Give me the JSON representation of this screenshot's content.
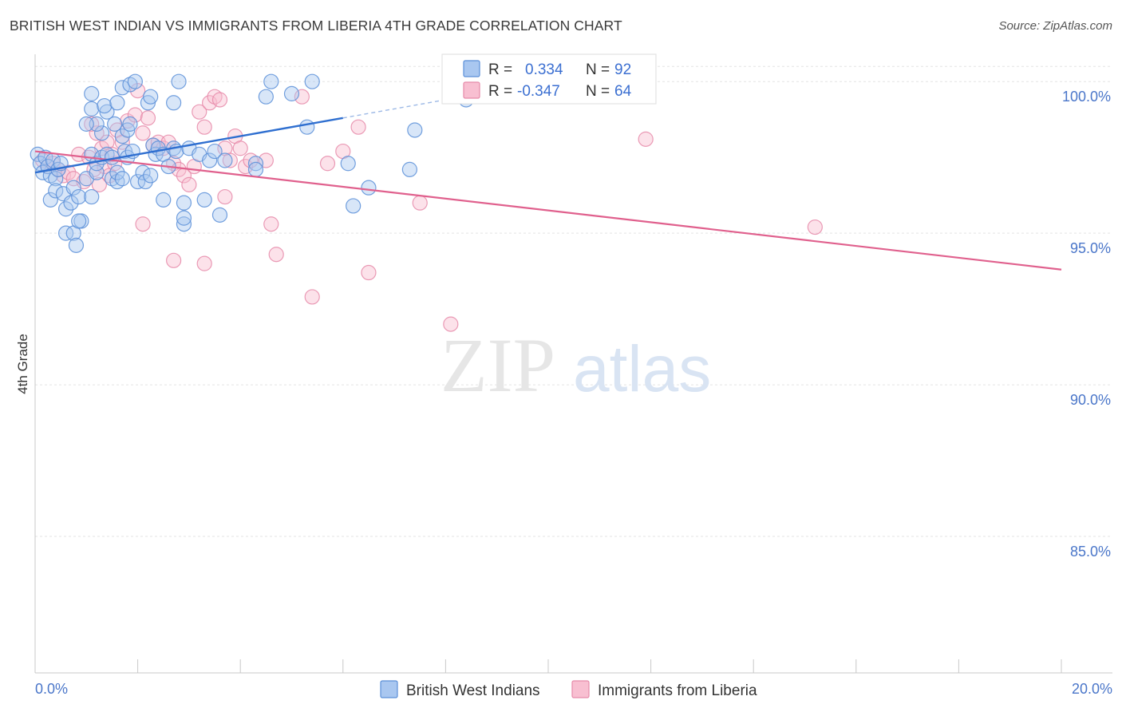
{
  "header": {
    "title": "BRITISH WEST INDIAN VS IMMIGRANTS FROM LIBERIA 4TH GRADE CORRELATION CHART",
    "source": "Source: ZipAtlas.com"
  },
  "watermark": {
    "zip": "ZIP",
    "atlas": "atlas"
  },
  "legend": {
    "r_label": "R =",
    "n_label": "N =",
    "series1": {
      "r": "0.334",
      "n": "92"
    },
    "series2": {
      "r": "-0.347",
      "n": "64"
    }
  },
  "chart_data": {
    "type": "scatter",
    "title": "BRITISH WEST INDIAN VS IMMIGRANTS FROM LIBERIA 4TH GRADE CORRELATION CHART",
    "xlabel": "",
    "ylabel": "4th Grade",
    "xlim": [
      0,
      20
    ],
    "ylim": [
      80.5,
      100.9
    ],
    "x_tick_labels": [
      "0.0%",
      "20.0%"
    ],
    "y_ticks": [
      85,
      90,
      95,
      100
    ],
    "y_tick_labels": [
      "85.0%",
      "90.0%",
      "95.0%",
      "100.0%"
    ],
    "colors": {
      "series1_fill": "#a9c7f0",
      "series1_stroke": "#5b8fd8",
      "series1_line": "#2f6fd0",
      "series2_fill": "#f8bfd1",
      "series2_stroke": "#e68aa9",
      "series2_line": "#e0608d"
    },
    "series": [
      {
        "name": "British West Indians",
        "trend": {
          "x": [
            0.0,
            6.0
          ],
          "y": [
            97.0,
            98.8
          ],
          "dashed_x": [
            6.0,
            9.0
          ],
          "dashed_y": [
            98.8,
            99.7
          ]
        },
        "points": [
          [
            0.05,
            97.6
          ],
          [
            0.1,
            97.3
          ],
          [
            0.15,
            97.0
          ],
          [
            0.2,
            97.5
          ],
          [
            0.25,
            97.2
          ],
          [
            0.3,
            96.9
          ],
          [
            0.35,
            97.4
          ],
          [
            0.4,
            96.8
          ],
          [
            0.45,
            97.1
          ],
          [
            0.5,
            97.3
          ],
          [
            0.3,
            96.1
          ],
          [
            0.4,
            96.4
          ],
          [
            0.55,
            96.3
          ],
          [
            0.6,
            95.8
          ],
          [
            0.7,
            96.0
          ],
          [
            0.75,
            96.5
          ],
          [
            0.85,
            96.2
          ],
          [
            0.9,
            95.4
          ],
          [
            0.6,
            95.0
          ],
          [
            0.75,
            95.0
          ],
          [
            0.8,
            94.6
          ],
          [
            0.85,
            95.4
          ],
          [
            1.0,
            96.8
          ],
          [
            1.1,
            96.2
          ],
          [
            1.2,
            97.0
          ],
          [
            1.1,
            97.6
          ],
          [
            1.2,
            97.3
          ],
          [
            1.3,
            97.5
          ],
          [
            1.4,
            97.6
          ],
          [
            1.5,
            96.8
          ],
          [
            1.6,
            96.7
          ],
          [
            1.6,
            97.0
          ],
          [
            1.7,
            96.8
          ],
          [
            1.5,
            97.5
          ],
          [
            1.75,
            97.7
          ],
          [
            1.8,
            97.5
          ],
          [
            1.9,
            97.7
          ],
          [
            1.7,
            98.2
          ],
          [
            1.8,
            98.4
          ],
          [
            1.55,
            98.6
          ],
          [
            1.3,
            98.3
          ],
          [
            1.2,
            98.6
          ],
          [
            1.0,
            98.6
          ],
          [
            1.4,
            99.0
          ],
          [
            1.1,
            99.1
          ],
          [
            1.35,
            99.2
          ],
          [
            1.1,
            99.6
          ],
          [
            1.6,
            99.3
          ],
          [
            1.7,
            99.8
          ],
          [
            1.85,
            98.6
          ],
          [
            1.85,
            99.9
          ],
          [
            1.95,
            100.0
          ],
          [
            2.0,
            96.7
          ],
          [
            2.1,
            97.0
          ],
          [
            2.2,
            99.3
          ],
          [
            2.25,
            99.5
          ],
          [
            2.3,
            97.9
          ],
          [
            2.35,
            97.6
          ],
          [
            2.15,
            96.7
          ],
          [
            2.5,
            96.1
          ],
          [
            2.4,
            97.8
          ],
          [
            2.5,
            97.6
          ],
          [
            2.25,
            96.9
          ],
          [
            2.6,
            97.2
          ],
          [
            2.7,
            97.8
          ],
          [
            2.75,
            97.7
          ],
          [
            2.8,
            100.0
          ],
          [
            2.7,
            99.3
          ],
          [
            2.9,
            95.3
          ],
          [
            2.9,
            96.0
          ],
          [
            2.9,
            95.5
          ],
          [
            3.0,
            97.8
          ],
          [
            3.2,
            97.6
          ],
          [
            3.4,
            97.4
          ],
          [
            3.5,
            97.7
          ],
          [
            3.6,
            95.6
          ],
          [
            3.7,
            97.4
          ],
          [
            3.3,
            96.1
          ],
          [
            4.3,
            97.3
          ],
          [
            4.3,
            97.1
          ],
          [
            4.5,
            99.5
          ],
          [
            4.6,
            100.0
          ],
          [
            5.0,
            99.6
          ],
          [
            5.3,
            98.5
          ],
          [
            5.4,
            100.0
          ],
          [
            6.1,
            97.3
          ],
          [
            6.2,
            95.9
          ],
          [
            6.5,
            96.5
          ],
          [
            7.3,
            97.1
          ],
          [
            7.4,
            98.4
          ],
          [
            8.4,
            99.4
          ],
          [
            8.6,
            99.8
          ]
        ]
      },
      {
        "name": "Immigrants from Liberia",
        "trend": {
          "x": [
            0.0,
            20.0
          ],
          "y": [
            97.7,
            93.8
          ]
        },
        "points": [
          [
            0.15,
            97.4
          ],
          [
            0.25,
            97.2
          ],
          [
            0.35,
            97.3
          ],
          [
            0.45,
            97.1
          ],
          [
            0.55,
            96.9
          ],
          [
            0.65,
            97.0
          ],
          [
            0.75,
            96.8
          ],
          [
            0.85,
            97.6
          ],
          [
            0.95,
            96.7
          ],
          [
            1.05,
            97.5
          ],
          [
            1.15,
            97.1
          ],
          [
            1.25,
            96.6
          ],
          [
            1.35,
            97.2
          ],
          [
            1.45,
            96.9
          ],
          [
            1.55,
            97.3
          ],
          [
            1.3,
            97.8
          ],
          [
            1.4,
            98.0
          ],
          [
            1.5,
            97.6
          ],
          [
            1.2,
            98.3
          ],
          [
            1.1,
            98.6
          ],
          [
            1.6,
            98.4
          ],
          [
            1.7,
            98.0
          ],
          [
            1.8,
            98.7
          ],
          [
            2.0,
            99.7
          ],
          [
            1.95,
            98.9
          ],
          [
            2.1,
            98.3
          ],
          [
            2.2,
            98.8
          ],
          [
            2.3,
            97.9
          ],
          [
            2.4,
            98.0
          ],
          [
            2.5,
            97.8
          ],
          [
            2.6,
            98.0
          ],
          [
            2.7,
            97.3
          ],
          [
            2.8,
            97.1
          ],
          [
            2.9,
            96.9
          ],
          [
            3.0,
            96.6
          ],
          [
            3.1,
            97.2
          ],
          [
            3.2,
            99.0
          ],
          [
            3.3,
            98.5
          ],
          [
            3.4,
            99.3
          ],
          [
            3.5,
            99.5
          ],
          [
            3.6,
            99.4
          ],
          [
            3.7,
            97.8
          ],
          [
            3.8,
            97.4
          ],
          [
            3.9,
            98.2
          ],
          [
            4.0,
            97.8
          ],
          [
            4.1,
            97.2
          ],
          [
            4.5,
            97.4
          ],
          [
            4.6,
            95.3
          ],
          [
            4.7,
            94.3
          ],
          [
            5.2,
            99.5
          ],
          [
            2.1,
            95.3
          ],
          [
            2.7,
            94.1
          ],
          [
            3.3,
            94.0
          ],
          [
            3.7,
            96.2
          ],
          [
            4.2,
            97.4
          ],
          [
            5.4,
            92.9
          ],
          [
            5.7,
            97.3
          ],
          [
            6.0,
            97.7
          ],
          [
            6.3,
            98.5
          ],
          [
            6.5,
            93.7
          ],
          [
            7.5,
            96.0
          ],
          [
            8.1,
            92.0
          ],
          [
            11.9,
            98.1
          ],
          [
            15.2,
            95.2
          ]
        ]
      }
    ]
  },
  "bottom_legend": {
    "series1": "British West Indians",
    "series2": "Immigrants from Liberia"
  }
}
